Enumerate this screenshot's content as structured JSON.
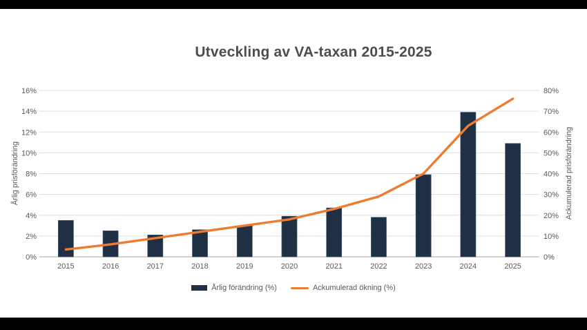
{
  "page": {
    "background": "#000000",
    "canvas_background": "#ffffff"
  },
  "chart": {
    "title": "Utveckling av VA-taxan 2015-2025",
    "left_axis_title": "Årlig prisförändring",
    "right_axis_title": "Ackumulerad prisförändring",
    "legend": {
      "annual_label": "Årlig förändring (%)",
      "cumulative_label": "Ackumulerad ökning (%)"
    }
  },
  "colors": {
    "bar": "#1f3044",
    "bar_edge": "#42536b",
    "line": "#ed7c31",
    "title": "#4d4d4d",
    "axis_text": "#595959",
    "gridline": "#dedede",
    "axis_line": "#a6a6a6"
  },
  "chart_data": {
    "type": "bar",
    "subtype": "bar+line-combo",
    "title": "Utveckling av VA-taxan 2015-2025",
    "categories": [
      "2015",
      "2016",
      "2017",
      "2018",
      "2019",
      "2020",
      "2021",
      "2022",
      "2023",
      "2024",
      "2025"
    ],
    "series": [
      {
        "name": "Årlig förändring (%)",
        "type": "bar",
        "axis": "left",
        "color": "#1f3044",
        "values": [
          3.5,
          2.5,
          2.1,
          2.6,
          3.0,
          3.9,
          4.7,
          3.8,
          7.9,
          13.9,
          10.9
        ]
      },
      {
        "name": "Ackumulerad ökning (%)",
        "type": "line",
        "axis": "right",
        "color": "#ed7c31",
        "values": [
          3.5,
          6,
          9,
          12,
          15,
          18,
          23,
          29,
          40,
          63,
          76
        ]
      }
    ],
    "left_axis": {
      "label": "Årlig prisförändring",
      "min": 0,
      "max": 16,
      "tick_step": 2,
      "ticks": [
        "0%",
        "2%",
        "4%",
        "6%",
        "8%",
        "10%",
        "12%",
        "14%",
        "16%"
      ]
    },
    "right_axis": {
      "label": "Ackumulerad prisförändring",
      "min": 0,
      "max": 80,
      "tick_step": 10,
      "ticks": [
        "0%",
        "10%",
        "20%",
        "30%",
        "40%",
        "50%",
        "60%",
        "70%",
        "80%"
      ]
    },
    "grid": true,
    "legend_position": "bottom"
  }
}
